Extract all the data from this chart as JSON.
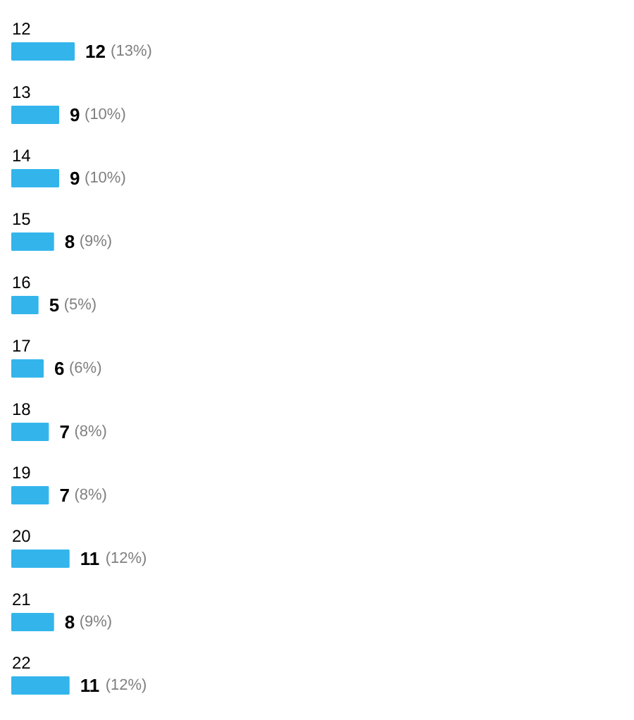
{
  "chart_data": {
    "type": "bar",
    "orientation": "horizontal",
    "categories": [
      "12",
      "13",
      "14",
      "15",
      "16",
      "17",
      "18",
      "19",
      "20",
      "21",
      "22"
    ],
    "values": [
      12,
      9,
      9,
      8,
      5,
      6,
      7,
      7,
      11,
      8,
      11
    ],
    "color": "#33b5ec",
    "data_labels": true,
    "grid": false,
    "tick_labels": false,
    "annotations": [
      {
        "text": "(13%)",
        "x": 12,
        "y": "12"
      },
      {
        "text": "(10%)",
        "x": 9,
        "y": "13"
      },
      {
        "text": "(10%)",
        "x": 9,
        "y": "14"
      },
      {
        "text": "(9%)",
        "x": 8,
        "y": "15"
      },
      {
        "text": "(5%)",
        "x": 5,
        "y": "16"
      },
      {
        "text": "(6%)",
        "x": 6,
        "y": "17"
      },
      {
        "text": "(8%)",
        "x": 7,
        "y": "18"
      },
      {
        "text": "(8%)",
        "x": 7,
        "y": "19"
      },
      {
        "text": "(12%)",
        "x": 11,
        "y": "20"
      },
      {
        "text": "(9%)",
        "x": 8,
        "y": "21"
      },
      {
        "text": "(12%)",
        "x": 11,
        "y": "22"
      }
    ]
  }
}
